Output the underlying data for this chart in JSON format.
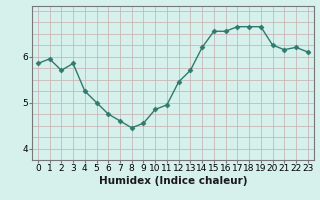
{
  "x": [
    0,
    1,
    2,
    3,
    4,
    5,
    6,
    7,
    8,
    9,
    10,
    11,
    12,
    13,
    14,
    15,
    16,
    17,
    18,
    19,
    20,
    21,
    22,
    23
  ],
  "y": [
    5.85,
    5.95,
    5.7,
    5.85,
    5.25,
    5.0,
    4.75,
    4.6,
    4.45,
    4.55,
    4.85,
    4.95,
    5.45,
    5.7,
    6.2,
    6.55,
    6.55,
    6.65,
    6.65,
    6.65,
    6.25,
    6.15,
    6.2,
    6.1
  ],
  "line_color": "#2e7b6e",
  "marker": "D",
  "marker_size": 2.5,
  "bg_color": "#d6f0ec",
  "grid_color_h": "#c8b8b8",
  "grid_color_v": "#c8b8b8",
  "xlabel": "Humidex (Indice chaleur)",
  "xlim": [
    -0.5,
    23.5
  ],
  "ylim": [
    3.75,
    7.1
  ],
  "yticks": [
    4,
    5,
    6
  ],
  "xticks": [
    0,
    1,
    2,
    3,
    4,
    5,
    6,
    7,
    8,
    9,
    10,
    11,
    12,
    13,
    14,
    15,
    16,
    17,
    18,
    19,
    20,
    21,
    22,
    23
  ],
  "xlabel_fontsize": 7.5,
  "tick_fontsize": 6.5,
  "line_width": 1.0
}
